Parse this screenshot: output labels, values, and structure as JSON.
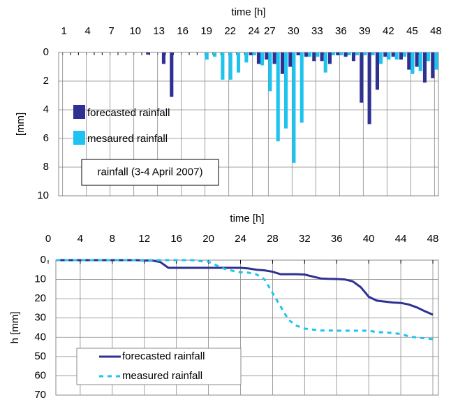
{
  "chart_data": [
    {
      "type": "bar",
      "title": "time [h]",
      "y_label": "[mm]",
      "annotation": "rainfall (3-4 April 2007)",
      "categories": [
        "1",
        null,
        null,
        "4",
        null,
        null,
        "7",
        null,
        null,
        "10",
        null,
        null,
        "13",
        null,
        null,
        "16",
        null,
        null,
        "19",
        null,
        null,
        "22",
        null,
        null,
        "24",
        null,
        "27",
        null,
        null,
        "30",
        null,
        null,
        "33",
        null,
        null,
        "36",
        null,
        null,
        "39",
        null,
        null,
        "42",
        null,
        null,
        "45",
        null,
        null,
        "48"
      ],
      "series": [
        {
          "name": "forecasted rainfall",
          "color": "#2e3192",
          "values": [
            0,
            0,
            0,
            0,
            0,
            0,
            0,
            0,
            0,
            0,
            0,
            0.15,
            0,
            0.8,
            3.1,
            0,
            0,
            0,
            0,
            0,
            0,
            0,
            0,
            0,
            0.2,
            0.8,
            0.5,
            0.8,
            1.5,
            1.0,
            0.2,
            0.3,
            0.6,
            0.6,
            0.8,
            0.2,
            0.3,
            0.6,
            3.5,
            5.0,
            2.6,
            0.3,
            0.3,
            0.5,
            1.2,
            1.0,
            2.1,
            1.8
          ]
        },
        {
          "name": "mesaured rainfall",
          "color": "#1fc3ef",
          "values": [
            0,
            0,
            0,
            0,
            0,
            0,
            0,
            0,
            0,
            0,
            0,
            0,
            0,
            0,
            0,
            0,
            0,
            0,
            0.5,
            0.3,
            1.9,
            1.9,
            1.4,
            0.7,
            0.2,
            0.9,
            2.7,
            6.2,
            5.3,
            7.7,
            4.9,
            0.3,
            0.3,
            1.4,
            0.2,
            0.2,
            0.2,
            0.2,
            0.2,
            0.2,
            0.8,
            0.5,
            0.5,
            0.3,
            1.5,
            1.3,
            0.6,
            1.2
          ]
        }
      ],
      "ylim": [
        0,
        10
      ],
      "yticks": [
        0,
        2,
        4,
        6,
        8,
        10
      ],
      "y_inverted": true,
      "grid": true
    },
    {
      "type": "line",
      "title": "time [h]",
      "y_label": "h [mm]",
      "x": [
        1,
        2,
        3,
        4,
        5,
        6,
        7,
        8,
        9,
        10,
        11,
        12,
        13,
        14,
        15,
        16,
        17,
        18,
        19,
        20,
        21,
        22,
        23,
        24,
        25,
        26,
        27,
        28,
        29,
        30,
        31,
        32,
        33,
        34,
        35,
        36,
        37,
        38,
        39,
        40,
        41,
        42,
        43,
        44,
        45,
        46,
        47,
        48
      ],
      "series": [
        {
          "name": "forecasted rainfall",
          "color": "#2e3192",
          "dashed": false,
          "values": [
            0,
            0,
            0,
            0,
            0,
            0,
            0,
            0,
            0,
            0,
            0,
            0.2,
            0.2,
            1.0,
            4.0,
            4.0,
            4.0,
            4.0,
            4.0,
            4.0,
            4.0,
            4.0,
            4.0,
            4.0,
            4.3,
            5.0,
            5.3,
            6.0,
            7.3,
            7.3,
            7.3,
            7.5,
            8.5,
            9.5,
            9.7,
            9.8,
            10.0,
            11.0,
            14,
            19,
            21,
            21.5,
            22,
            22.2,
            23,
            24.5,
            26.5,
            28.3
          ]
        },
        {
          "name": "measured rainfall",
          "color": "#1fc3ef",
          "dashed": true,
          "values": [
            0,
            0,
            0,
            0,
            0,
            0,
            0,
            0,
            0,
            0,
            0,
            0,
            0,
            0,
            0,
            0,
            0,
            0,
            0.5,
            0.8,
            2.7,
            4.5,
            5.5,
            6.3,
            6.5,
            7.4,
            10,
            17,
            24,
            31,
            34,
            35.5,
            36,
            36.5,
            36.5,
            36.6,
            36.6,
            36.6,
            36.6,
            36.6,
            37.3,
            37.5,
            37.8,
            38.3,
            39.5,
            40.2,
            40.5,
            41
          ]
        }
      ],
      "xlim": [
        0,
        48
      ],
      "xticks": [
        0,
        4,
        8,
        12,
        16,
        20,
        24,
        28,
        32,
        36,
        40,
        44,
        48
      ],
      "ylim": [
        0,
        70
      ],
      "yticks": [
        0,
        10,
        20,
        30,
        40,
        50,
        60,
        70
      ],
      "y_inverted": true,
      "grid": true
    }
  ]
}
